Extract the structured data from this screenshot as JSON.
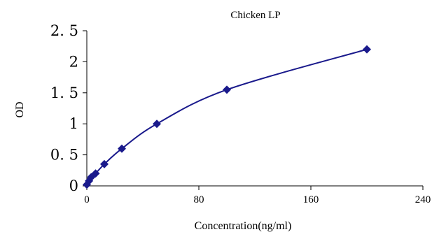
{
  "chart_data": {
    "type": "scatter",
    "title": "Chicken LP",
    "xlabel": "Concentration(ng/ml)",
    "ylabel": "OD",
    "xlim": [
      0,
      240
    ],
    "ylim": [
      0,
      2.5
    ],
    "x_ticks": [
      0,
      80,
      160,
      240
    ],
    "y_ticks": [
      0,
      0.5,
      1,
      1.5,
      2,
      2.5
    ],
    "x_tick_labels": [
      "0",
      "80",
      "160",
      "240"
    ],
    "y_tick_labels": [
      "0",
      "0. 5",
      "1",
      "1. 5",
      "2",
      "2. 5"
    ],
    "grid": false,
    "legend": "none",
    "series": [
      {
        "x": [
          0,
          1.56,
          3.12,
          6.25,
          12.5,
          25,
          50,
          100,
          200
        ],
        "y": [
          0.02,
          0.08,
          0.14,
          0.2,
          0.35,
          0.6,
          1.0,
          1.55,
          2.2
        ],
        "marker": "diamond",
        "line": "smooth",
        "color": "#1a1a8c"
      }
    ]
  }
}
